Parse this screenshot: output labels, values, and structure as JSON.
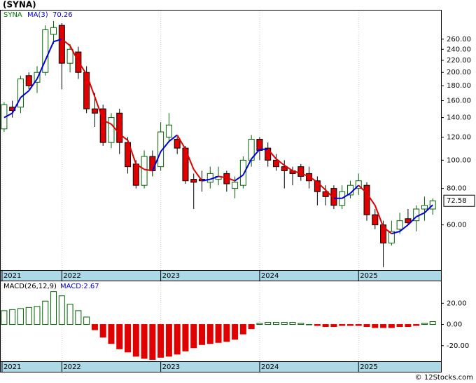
{
  "title": "(SYNA)",
  "footer": "© 12Stocks.com",
  "chart_data": [
    {
      "type": "candlestick",
      "symbol": "SYNA",
      "log_scale": true,
      "grid": true,
      "up_color": "#006400",
      "down_color": "#e00000",
      "open": [
        128,
        152,
        152,
        195,
        185,
        200,
        270,
        290,
        215,
        235,
        200,
        150,
        150,
        115,
        145,
        115,
        97,
        82,
        103,
        95,
        120,
        118,
        110,
        86,
        86,
        84,
        86,
        90,
        80,
        82,
        100,
        118,
        110,
        100,
        95,
        92,
        95,
        90,
        85,
        78,
        80,
        70,
        76,
        80,
        82,
        65,
        60,
        52,
        58,
        63,
        62,
        68,
        68
      ],
      "high": [
        158,
        160,
        195,
        200,
        210,
        290,
        300,
        295,
        250,
        245,
        210,
        170,
        155,
        145,
        150,
        120,
        100,
        108,
        108,
        135,
        145,
        120,
        112,
        90,
        92,
        95,
        95,
        92,
        88,
        103,
        122,
        120,
        115,
        105,
        100,
        95,
        97,
        95,
        88,
        82,
        82,
        82,
        85,
        90,
        84,
        68,
        62,
        62,
        66,
        68,
        70,
        75,
        74
      ],
      "low": [
        125,
        140,
        145,
        175,
        170,
        195,
        250,
        175,
        200,
        190,
        145,
        130,
        112,
        110,
        105,
        90,
        80,
        80,
        88,
        92,
        115,
        105,
        83,
        68,
        78,
        80,
        82,
        78,
        74,
        80,
        95,
        100,
        95,
        92,
        80,
        82,
        85,
        80,
        70,
        70,
        68,
        68,
        74,
        76,
        62,
        58,
        43,
        51,
        56,
        60,
        57,
        62,
        65
      ],
      "close": [
        155,
        148,
        190,
        180,
        200,
        280,
        285,
        215,
        240,
        200,
        150,
        145,
        115,
        140,
        115,
        95,
        82,
        103,
        92,
        125,
        132,
        110,
        85,
        84,
        85,
        90,
        88,
        83,
        84,
        100,
        118,
        108,
        100,
        95,
        92,
        90,
        88,
        85,
        78,
        75,
        70,
        78,
        82,
        85,
        65,
        60,
        52,
        57,
        62,
        61,
        68,
        70,
        72.58
      ],
      "ma": {
        "name": "MA(3)",
        "up_color": "#0000dd",
        "down_color": "#e00000",
        "values": [
          140,
          145,
          164,
          173,
          190,
          220,
          255,
          260,
          247,
          218,
          197,
          165,
          137,
          133,
          123,
          117,
          97,
          93,
          92,
          107,
          116,
          122,
          109,
          93,
          85,
          86,
          88,
          87,
          85,
          89,
          101,
          109,
          109,
          101,
          96,
          92,
          90,
          88,
          84,
          79,
          74,
          74,
          77,
          82,
          77,
          70,
          59,
          56,
          57,
          60,
          64,
          66,
          70.26
        ]
      },
      "xlim": [
        -0.5,
        53
      ],
      "xticks": [
        {
          "value": -0.25,
          "label": "2021"
        },
        {
          "value": 7,
          "label": "2022"
        },
        {
          "value": 19,
          "label": "2023"
        },
        {
          "value": 31,
          "label": "2024"
        },
        {
          "value": 43,
          "label": "2025"
        }
      ],
      "ylim": [
        42,
        326
      ],
      "yticks": [
        {
          "value": 60,
          "label": "60.00"
        },
        {
          "value": 80,
          "label": "80.00"
        },
        {
          "value": 100,
          "label": "100.00"
        },
        {
          "value": 120,
          "label": "120.00"
        },
        {
          "value": 140,
          "label": "140.00"
        },
        {
          "value": 160,
          "label": "160.00"
        },
        {
          "value": 180,
          "label": "180.00"
        },
        {
          "value": 200,
          "label": "200.00"
        },
        {
          "value": 220,
          "label": "220.00"
        },
        {
          "value": 240,
          "label": "240.00"
        },
        {
          "value": 260,
          "label": "260.00"
        }
      ]
    },
    {
      "type": "histogram-bars",
      "name": "MACD(26,12,9)",
      "value_label": "MACD:2.67",
      "up_color": "#006400",
      "down_color": "#e00000",
      "values": [
        13,
        14,
        15,
        16,
        17,
        22,
        31,
        27,
        19,
        13,
        7,
        -5,
        -12,
        -18,
        -23,
        -26,
        -30,
        -32,
        -33,
        -31,
        -30,
        -28,
        -25,
        -22,
        -19,
        -18,
        -17,
        -16,
        -14,
        -9,
        -4,
        1,
        2,
        2,
        2,
        2,
        1,
        0,
        -1,
        -2,
        -2,
        -1,
        -1,
        -1,
        -2,
        -3,
        -3,
        -3,
        -2,
        -2,
        -1,
        1,
        2.67
      ],
      "xlim": [
        -0.5,
        53
      ],
      "xticks": [
        {
          "value": -0.25,
          "label": "2021"
        },
        {
          "value": 7,
          "label": "2022"
        },
        {
          "value": 19,
          "label": "2023"
        },
        {
          "value": 31,
          "label": "2024"
        },
        {
          "value": 43,
          "label": "2025"
        }
      ],
      "ylim": [
        -34.7,
        40.7
      ],
      "yticks": [
        {
          "value": -20,
          "label": "-20.00"
        },
        {
          "value": 0,
          "label": "0.00"
        },
        {
          "value": 20,
          "label": "20.00"
        }
      ]
    }
  ]
}
